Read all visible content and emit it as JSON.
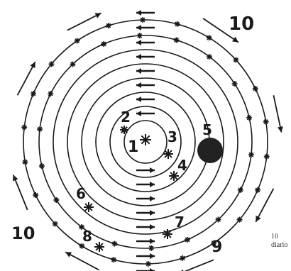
{
  "diagram": {
    "labels": {
      "star_1": "1",
      "star_2": "2",
      "star_3": "3",
      "star_4": "4",
      "planet_5": "5",
      "star_6": "6",
      "star_7": "7",
      "star_8": "8",
      "star_9": "9",
      "ring_10_top": "10",
      "ring_10_left": "10"
    },
    "caption_lines": [
      "10",
      "diario"
    ],
    "colors": {
      "ink": "#1a1a1a",
      "planet": "#222222",
      "background": "#ffffff"
    }
  }
}
